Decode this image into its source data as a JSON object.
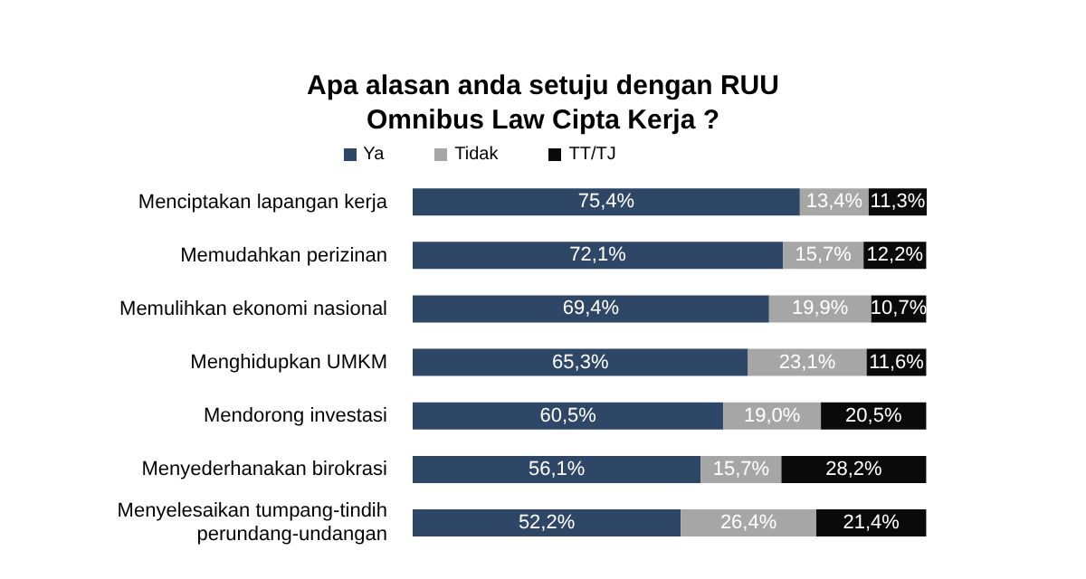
{
  "chart_data": {
    "type": "bar",
    "orientation": "horizontal",
    "stacked": true,
    "title": "Apa alasan anda setuju dengan RUU Omnibus Law Cipta Kerja ?",
    "legend": "top",
    "categories": [
      "Menciptakan lapangan kerja",
      "Memudahkan perizinan",
      "Memulihkan ekonomi nasional",
      "Menghidupkan UMKM",
      "Mendorong investasi",
      "Menyederhanakan birokrasi",
      "Menyelesaikan tumpang-tindih perundang-undangan"
    ],
    "series": [
      {
        "name": "Ya",
        "color": "#2f4766",
        "values": [
          75.4,
          72.1,
          69.4,
          65.3,
          60.5,
          56.1,
          52.2
        ],
        "value_labels": [
          "75,4%",
          "72,1%",
          "69,4%",
          "65,3%",
          "60,5%",
          "56,1%",
          "52,2%"
        ]
      },
      {
        "name": "Tidak",
        "color": "#a6a6a6",
        "values": [
          13.4,
          15.7,
          19.9,
          23.1,
          19.0,
          15.7,
          26.4
        ],
        "value_labels": [
          "13,4%",
          "15,7%",
          "19,9%",
          "23,1%",
          "19,0%",
          "15,7%",
          "26,4%"
        ]
      },
      {
        "name": "TT/TJ",
        "color": "#0a0a0a",
        "values": [
          11.3,
          12.2,
          10.7,
          11.6,
          20.5,
          28.2,
          21.4
        ],
        "value_labels": [
          "11,3%",
          "12,2%",
          "10,7%",
          "11,6%",
          "20,5%",
          "28,2%",
          "21,4%"
        ]
      }
    ]
  }
}
